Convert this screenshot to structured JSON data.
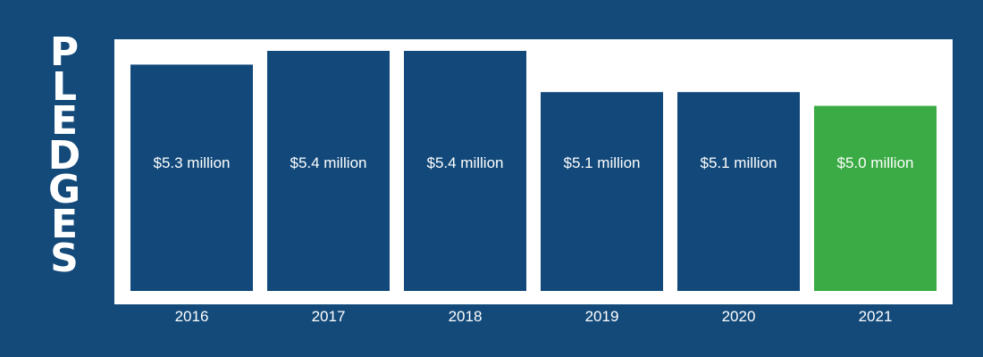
{
  "side_title": "PLEDGES",
  "colors": {
    "background": "#134a7a",
    "panel": "#ffffff",
    "bar": "#12497a",
    "highlight_bar": "#3bab45",
    "text": "#ffffff"
  },
  "chart_data": {
    "type": "bar",
    "title": "PLEDGES",
    "categories": [
      "2016",
      "2017",
      "2018",
      "2019",
      "2020",
      "2021"
    ],
    "values": [
      5.3,
      5.4,
      5.4,
      5.1,
      5.1,
      5.0
    ],
    "data_labels": [
      "$5.3 million",
      "$5.4 million",
      "$5.4 million",
      "$5.1 million",
      "$5.1 million",
      "$5.0 million"
    ],
    "highlight_index": 5,
    "grid": false,
    "legend": "none"
  }
}
